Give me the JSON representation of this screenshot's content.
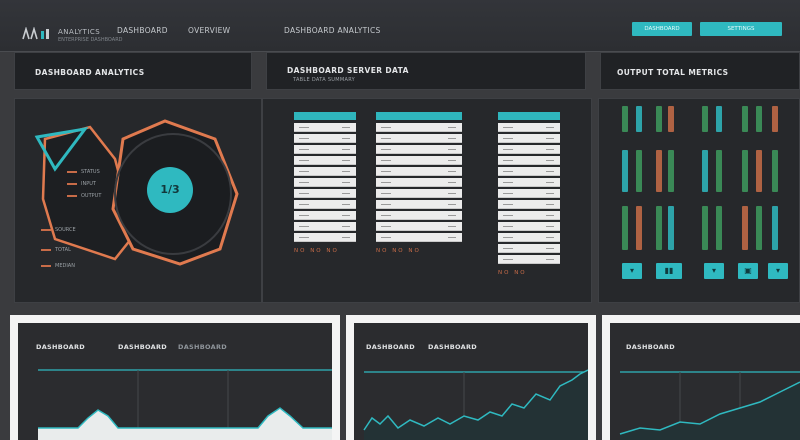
{
  "header": {
    "brand": "ANALYTICS",
    "brand_sub": "ENTERPRISE DASHBOARD",
    "nav": [
      "DASHBOARD",
      "OVERVIEW",
      "DASHBOARD"
    ],
    "nav_active": "DASHBOARD ANALYTICS",
    "buttons": [
      "DASHBOARD",
      "SETTINGS"
    ]
  },
  "panels": {
    "left": {
      "title": "DASHBOARD ANALYTICS"
    },
    "middle": {
      "title": "DASHBOARD SERVER DATA",
      "subtitle": "TABLE DATA SUMMARY"
    },
    "right": {
      "title": "OUTPUT TOTAL METRICS"
    }
  },
  "gauge": {
    "value": "1/3",
    "labels": [
      "STATUS",
      "INPUT",
      "OUTPUT",
      "SOURCE",
      "TOTAL",
      "MEDIAN"
    ]
  },
  "tables": [
    {
      "footer": "NO NO NO"
    },
    {
      "footer": "NO NO NO"
    },
    {
      "footer": "NO NO"
    }
  ],
  "bottom": [
    {
      "title": "DASHBOARD",
      "title2": "DASHBOARD",
      "title3": "DASHBOARD"
    },
    {
      "title": "DASHBOARD",
      "title2": "DASHBOARD"
    },
    {
      "title": "DASHBOARD"
    }
  ],
  "colors": {
    "accent": "#2fb9c0",
    "warm": "#c86c48",
    "green": "#3e9a5e"
  }
}
